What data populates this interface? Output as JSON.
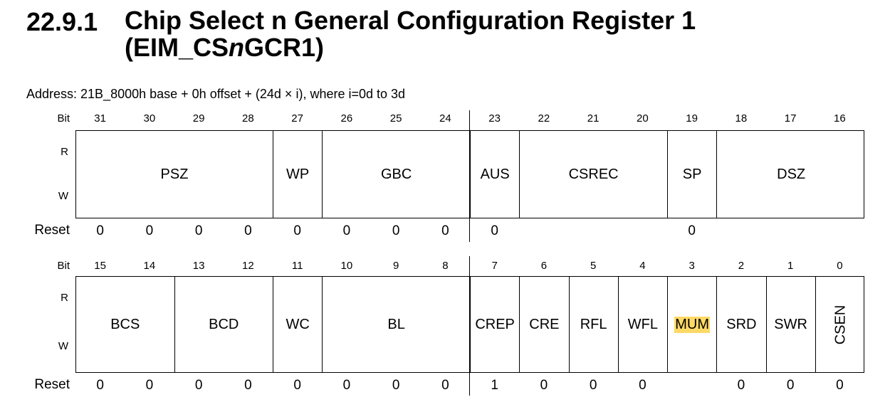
{
  "heading": {
    "number": "22.9.1",
    "title_line1": "Chip Select n General Configuration Register 1",
    "title_line2_prefix": "(EIM_CS",
    "title_line2_italic": "n",
    "title_line2_suffix": "GCR1)"
  },
  "address": "Address: 21B_8000h base + 0h offset + (24d × i), where i=0d to 3d",
  "labels": {
    "bit": "Bit",
    "r": "R",
    "w": "W",
    "reset": "Reset"
  },
  "upper": {
    "bits": [
      "31",
      "30",
      "29",
      "28",
      "27",
      "26",
      "25",
      "24",
      "23",
      "22",
      "21",
      "20",
      "19",
      "18",
      "17",
      "16"
    ],
    "fields": [
      {
        "name": "PSZ",
        "span": 4
      },
      {
        "name": "WP",
        "span": 1
      },
      {
        "name": "GBC",
        "span": 3
      },
      {
        "name": "AUS",
        "span": 1
      },
      {
        "name": "CSREC",
        "span": 3
      },
      {
        "name": "SP",
        "span": 1
      },
      {
        "name": "DSZ",
        "span": 3
      }
    ],
    "reset": [
      "0",
      "0",
      "0",
      "0",
      "0",
      "0",
      "0",
      "0",
      "0",
      "",
      "",
      "",
      "0",
      "",
      "",
      ""
    ]
  },
  "lower": {
    "bits": [
      "15",
      "14",
      "13",
      "12",
      "11",
      "10",
      "9",
      "8",
      "7",
      "6",
      "5",
      "4",
      "3",
      "2",
      "1",
      "0"
    ],
    "fields": [
      {
        "name": "BCS",
        "span": 2
      },
      {
        "name": "BCD",
        "span": 2
      },
      {
        "name": "WC",
        "span": 1
      },
      {
        "name": "BL",
        "span": 3
      },
      {
        "name": "CREP",
        "span": 1
      },
      {
        "name": "CRE",
        "span": 1
      },
      {
        "name": "RFL",
        "span": 1
      },
      {
        "name": "WFL",
        "span": 1
      },
      {
        "name": "MUM",
        "span": 1,
        "highlight": true
      },
      {
        "name": "SRD",
        "span": 1
      },
      {
        "name": "SWR",
        "span": 1
      },
      {
        "name": "CSEN",
        "span": 1,
        "vertical": true
      }
    ],
    "reset": [
      "0",
      "0",
      "0",
      "0",
      "0",
      "0",
      "0",
      "0",
      "1",
      "0",
      "0",
      "0",
      "",
      "0",
      "0",
      "0"
    ]
  },
  "colors": {
    "highlight": "#ffd966"
  }
}
